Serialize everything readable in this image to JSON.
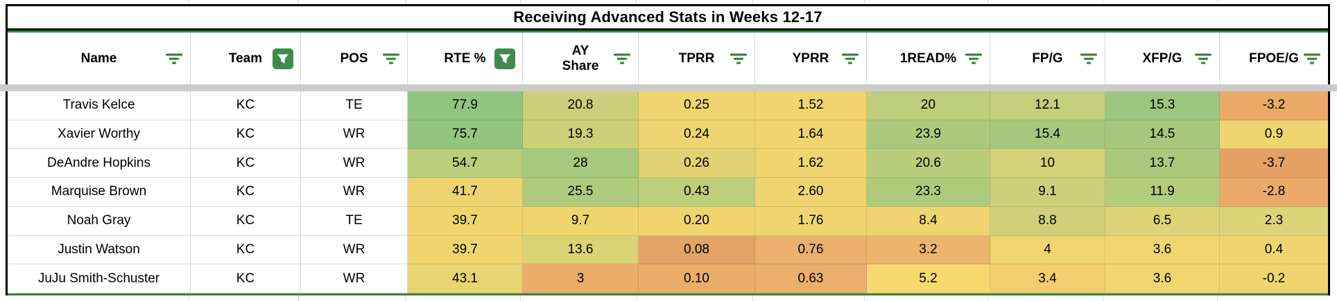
{
  "title": "Receiving Advanced Stats in Weeks 12-17",
  "colors": {
    "accent_green_border": "#3a8340",
    "filter_icon_green": "#2f7d33",
    "active_filter_bg": "#3e8c4b",
    "divider_gray": "#cbcbcb",
    "gridline": "#d9d9d9",
    "table_border": "#000000"
  },
  "table": {
    "columns": [
      {
        "label": "Name",
        "filter": "lines",
        "icon": "filter-lines-icon"
      },
      {
        "label": "Team",
        "filter": "active",
        "icon": "filter-active-icon"
      },
      {
        "label": "POS",
        "filter": "lines",
        "icon": "filter-lines-icon"
      },
      {
        "label": "RTE %",
        "filter": "active",
        "icon": "filter-active-icon"
      },
      {
        "label": "AY Share",
        "filter": "lines",
        "wrap": true,
        "icon": "filter-lines-icon"
      },
      {
        "label": "TPRR",
        "filter": "lines",
        "icon": "filter-lines-icon"
      },
      {
        "label": "YPRR",
        "filter": "lines",
        "icon": "filter-lines-icon"
      },
      {
        "label": "1READ%",
        "filter": "lines",
        "icon": "filter-lines-icon"
      },
      {
        "label": "FP/G",
        "filter": "lines",
        "icon": "filter-lines-icon"
      },
      {
        "label": "XFP/G",
        "filter": "lines",
        "icon": "filter-lines-icon"
      },
      {
        "label": "FPOE/G",
        "filter": "lines",
        "icon": "filter-lines-icon"
      }
    ],
    "rows": [
      {
        "name": "Travis Kelce",
        "team": "KC",
        "pos": "TE",
        "stats": [
          {
            "v": "77.9",
            "bg": "#90C57F"
          },
          {
            "v": "20.8",
            "bg": "#CBCF7A"
          },
          {
            "v": "0.25",
            "bg": "#EFD46F"
          },
          {
            "v": "1.52",
            "bg": "#F0D46E"
          },
          {
            "v": "20",
            "bg": "#BFCE7B"
          },
          {
            "v": "12.1",
            "bg": "#C4CF7B"
          },
          {
            "v": "15.3",
            "bg": "#9CC67E"
          },
          {
            "v": "-3.2",
            "bg": "#E9A967"
          }
        ]
      },
      {
        "name": "Xavier Worthy",
        "team": "KC",
        "pos": "WR",
        "stats": [
          {
            "v": "75.7",
            "bg": "#93C57F"
          },
          {
            "v": "19.3",
            "bg": "#CED079"
          },
          {
            "v": "0.24",
            "bg": "#EED471"
          },
          {
            "v": "1.64",
            "bg": "#EFD46F"
          },
          {
            "v": "23.9",
            "bg": "#ABCA7D"
          },
          {
            "v": "15.4",
            "bg": "#A3C87E"
          },
          {
            "v": "14.5",
            "bg": "#A5C87D"
          },
          {
            "v": "0.9",
            "bg": "#EFD56F"
          }
        ]
      },
      {
        "name": "DeAndre Hopkins",
        "team": "KC",
        "pos": "WR",
        "stats": [
          {
            "v": "54.7",
            "bg": "#BDCE7B"
          },
          {
            "v": "28",
            "bg": "#A5C97D"
          },
          {
            "v": "0.26",
            "bg": "#E3D273"
          },
          {
            "v": "1.62",
            "bg": "#EFD46F"
          },
          {
            "v": "20.6",
            "bg": "#BACD7C"
          },
          {
            "v": "10",
            "bg": "#D3D178"
          },
          {
            "v": "13.7",
            "bg": "#A9C97D"
          },
          {
            "v": "-3.7",
            "bg": "#E5A066"
          }
        ]
      },
      {
        "name": "Marquise Brown",
        "team": "KC",
        "pos": "WR",
        "stats": [
          {
            "v": "41.7",
            "bg": "#EDD470"
          },
          {
            "v": "25.5",
            "bg": "#AFCB7C"
          },
          {
            "v": "0.43",
            "bg": "#BFCE7B"
          },
          {
            "v": "2.60",
            "bg": "#EFD470"
          },
          {
            "v": "23.3",
            "bg": "#AECB7C"
          },
          {
            "v": "9.1",
            "bg": "#CCD07A"
          },
          {
            "v": "11.9",
            "bg": "#B5CC7C"
          },
          {
            "v": "-2.8",
            "bg": "#E9AA68"
          }
        ]
      },
      {
        "name": "Noah Gray",
        "team": "KC",
        "pos": "TE",
        "stats": [
          {
            "v": "39.7",
            "bg": "#F0D56F"
          },
          {
            "v": "9.7",
            "bg": "#F0D56F"
          },
          {
            "v": "0.20",
            "bg": "#F0D56F"
          },
          {
            "v": "1.76",
            "bg": "#F0D56F"
          },
          {
            "v": "8.4",
            "bg": "#EFD470"
          },
          {
            "v": "8.8",
            "bg": "#CFD079"
          },
          {
            "v": "6.5",
            "bg": "#DED377"
          },
          {
            "v": "2.3",
            "bg": "#DDD377"
          }
        ]
      },
      {
        "name": "Justin Watson",
        "team": "KC",
        "pos": "WR",
        "stats": [
          {
            "v": "39.7",
            "bg": "#F0D56F"
          },
          {
            "v": "13.6",
            "bg": "#DCD377"
          },
          {
            "v": "0.08",
            "bg": "#E2A466"
          },
          {
            "v": "0.76",
            "bg": "#EAB06C"
          },
          {
            "v": "3.2",
            "bg": "#ECB46C"
          },
          {
            "v": "4",
            "bg": "#F1D56F"
          },
          {
            "v": "3.6",
            "bg": "#F1D56F"
          },
          {
            "v": "0.4",
            "bg": "#F0D56F"
          }
        ]
      },
      {
        "name": "JuJu Smith-Schuster",
        "team": "KC",
        "pos": "WR",
        "stats": [
          {
            "v": "43.1",
            "bg": "#E8D471"
          },
          {
            "v": "3",
            "bg": "#EBAD67"
          },
          {
            "v": "0.10",
            "bg": "#E9AE6A"
          },
          {
            "v": "0.63",
            "bg": "#EAAF6B"
          },
          {
            "v": "5.2",
            "bg": "#F5D96E"
          },
          {
            "v": "3.4",
            "bg": "#F2CE6E"
          },
          {
            "v": "3.6",
            "bg": "#F1D56F"
          },
          {
            "v": "-0.2",
            "bg": "#F0D56F"
          }
        ]
      }
    ]
  }
}
